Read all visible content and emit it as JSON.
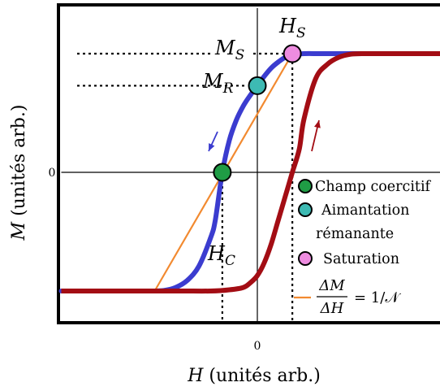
{
  "chart_data": {
    "type": "line",
    "title": "",
    "xlabel_var": "H",
    "xlabel_unit": "(unités arb.)",
    "ylabel_var": "M",
    "ylabel_unit": "(unités arb.)",
    "x_ticks": [
      {
        "value": 0,
        "label": "0"
      }
    ],
    "y_ticks": [
      {
        "value": 0,
        "label": "0"
      }
    ],
    "xlim": [
      -4.2,
      4.2
    ],
    "ylim": [
      -1.6,
      1.6
    ],
    "saturation_M": 1.0,
    "coercive_field": 0.75,
    "descending_branch": {
      "name": "",
      "color": "#3b3ccf",
      "x": [
        -4.2,
        -3.4,
        -2.8,
        -2.3,
        -2.0,
        -1.75,
        -1.5,
        -1.25,
        -1.0,
        -0.9,
        -0.75,
        -0.6,
        -0.45,
        -0.3,
        -0.15,
        0.0,
        0.15,
        0.3,
        0.45,
        0.6,
        0.75,
        1.0,
        1.3,
        1.6,
        2.2,
        3.0,
        3.6,
        4.2
      ],
      "y": [
        -1.0,
        -1.0,
        -1.0,
        -1.0,
        -0.995,
        -0.97,
        -0.91,
        -0.79,
        -0.55,
        -0.4,
        0.0,
        0.27,
        0.44,
        0.56,
        0.65,
        0.73,
        0.81,
        0.88,
        0.93,
        0.97,
        0.99,
        1.0,
        1.0,
        1.0,
        1.0,
        1.0,
        1.0,
        1.0
      ]
    },
    "ascending_branch": {
      "name": "",
      "color": "#a30d14",
      "x": [
        -4.2,
        -3.4,
        -2.8,
        -2.3,
        -1.6,
        -1.0,
        -0.6,
        -0.3,
        -0.15,
        0.0,
        0.15,
        0.3,
        0.45,
        0.6,
        0.75,
        0.9,
        1.0,
        1.25,
        1.5,
        1.75,
        2.0,
        2.3,
        2.8,
        3.4,
        4.2
      ],
      "y": [
        -1.0,
        -1.0,
        -1.0,
        -1.0,
        -1.0,
        -1.0,
        -0.99,
        -0.97,
        -0.93,
        -0.87,
        -0.76,
        -0.6,
        -0.4,
        -0.2,
        0.0,
        0.2,
        0.45,
        0.79,
        0.91,
        0.97,
        0.995,
        1.0,
        1.0,
        1.0,
        1.0
      ]
    },
    "demagnetization_line": {
      "color": "#f28a30",
      "x": [
        -2.2,
        0.75
      ],
      "y": [
        -1.0,
        1.0
      ]
    },
    "points": [
      {
        "key": "coercive",
        "x": -0.75,
        "y": 0.0,
        "color": "#1f9c45",
        "marker_label_var": "H",
        "marker_label_sub": "C"
      },
      {
        "key": "remanent",
        "x": 0.0,
        "y": 0.73,
        "color": "#3dbab3",
        "marker_label_var": "M",
        "marker_label_sub": "R"
      },
      {
        "key": "saturation",
        "x": 0.75,
        "y": 1.0,
        "color": "#ee8ce0",
        "marker_label_var": "H",
        "marker_label_sub": "S"
      }
    ],
    "ms_label_var": "M",
    "ms_label_sub": "S",
    "legend": {
      "placement": "lower-right inside",
      "items": [
        {
          "key": "coercive",
          "label_lines": [
            "Champ coercitif"
          ]
        },
        {
          "key": "remanent",
          "label_lines": [
            "Aimantation",
            "rémanante"
          ]
        },
        {
          "key": "saturation",
          "label_lines": [
            "Saturation"
          ]
        }
      ],
      "line_item": {
        "num": "ΔM",
        "den": "ΔH",
        "rhs": "= 1/𝒩"
      }
    },
    "arrows": [
      {
        "branch": "descending",
        "color": "#3b3ccf",
        "direction": "down"
      },
      {
        "branch": "ascending",
        "color": "#a30d14",
        "direction": "up"
      }
    ]
  }
}
